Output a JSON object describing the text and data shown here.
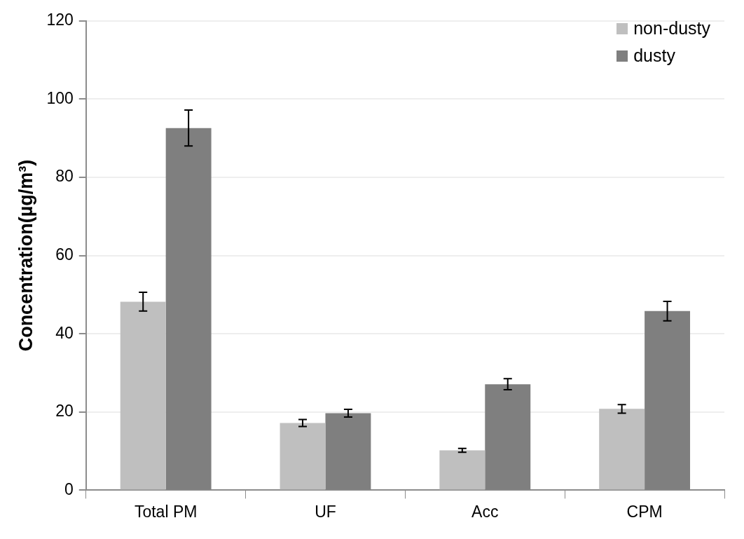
{
  "chart_data": {
    "type": "bar",
    "ylabel": "Concentration(µg/m³)",
    "categories": [
      "Total PM",
      "UF",
      "Acc",
      "CPM"
    ],
    "series": [
      {
        "name": "non-dusty",
        "color": "#bfbfbf",
        "values": [
          48.2,
          17.2,
          10.2,
          20.8
        ],
        "errors": [
          2.4,
          0.9,
          0.5,
          1.1
        ]
      },
      {
        "name": "dusty",
        "color": "#7f7f7f",
        "values": [
          92.6,
          19.7,
          27.1,
          45.8
        ],
        "errors": [
          4.6,
          1.0,
          1.4,
          2.5
        ]
      }
    ],
    "ylim": [
      0,
      120
    ],
    "yticks": [
      0,
      20,
      40,
      60,
      80,
      100,
      120
    ],
    "grid": "y",
    "legend": "top right"
  }
}
